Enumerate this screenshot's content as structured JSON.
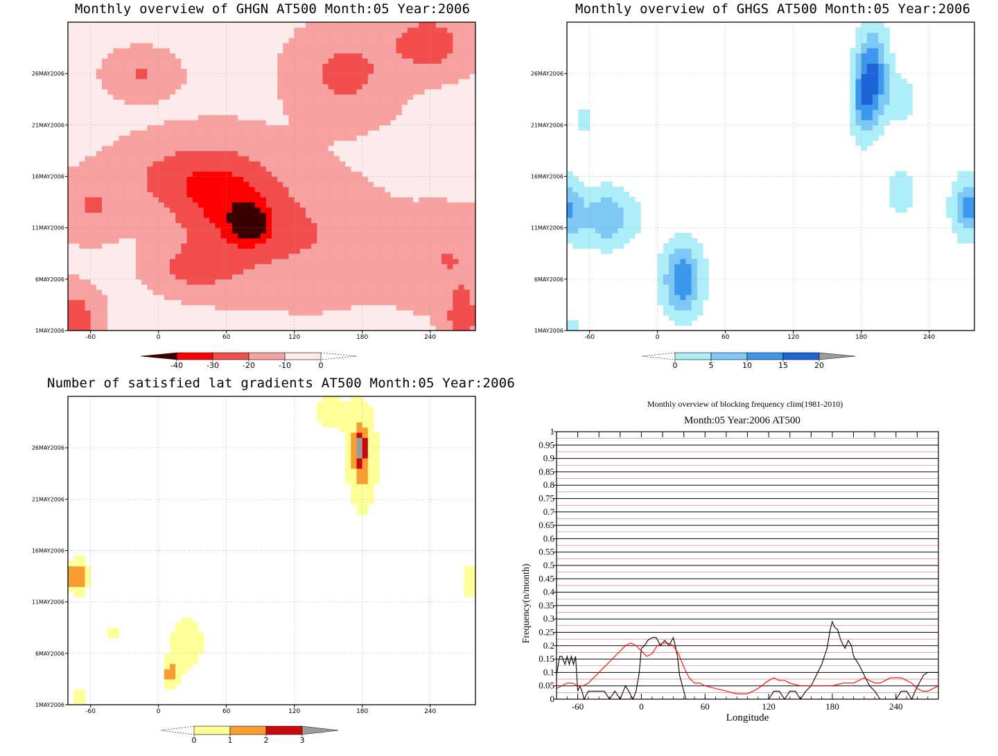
{
  "panels": {
    "ghgn": {
      "title": "Monthly overview of GHGN AT500 Month:05 Year:2006"
    },
    "ghgs": {
      "title": "Monthly overview of GHGS AT500 Month:05 Year:2006"
    },
    "latgrad": {
      "title": "Number of satisfied lat gradients AT500 Month:05 Year:2006"
    },
    "freq": {
      "title": "Monthly overview of blocking frequency clim(1981-2010)",
      "subtitle": "Month:05 Year:2006  AT500"
    }
  },
  "hovmoller_axes": {
    "x_ticks": [
      "-60",
      "0",
      "60",
      "120",
      "180",
      "240"
    ],
    "x_values": [
      -60,
      0,
      60,
      120,
      180,
      240
    ],
    "xlim": [
      -80,
      280
    ],
    "y_ticks": [
      "1MAY2006",
      "6MAY2006",
      "11MAY2006",
      "16MAY2006",
      "21MAY2006",
      "26MAY2006"
    ],
    "y_values": [
      1,
      6,
      11,
      16,
      21,
      26
    ],
    "ylim": [
      1,
      31
    ]
  },
  "colorbars": {
    "ghgn": {
      "labels": [
        "-40",
        "-30",
        "-20",
        "-10",
        "0"
      ],
      "colors": [
        "#3a0000",
        "#ff0000",
        "#f24e4e",
        "#f8a1a1",
        "#fdeaea"
      ]
    },
    "ghgs": {
      "labels": [
        "0",
        "5",
        "10",
        "15",
        "20"
      ],
      "colors": [
        "#aeeef8",
        "#7ec8f6",
        "#3c98ec",
        "#1c64d8",
        "#9b9b9b"
      ]
    },
    "latgrad": {
      "labels": [
        "0",
        "1",
        "2",
        "3"
      ],
      "colors": [
        "#ffff99",
        "#f99d30",
        "#c80a0a",
        "#9b9b9b"
      ]
    }
  },
  "chart_data": [
    {
      "type": "heatmap",
      "title": "Monthly overview of GHGN AT500 Month:05 Year:2006",
      "xlabel": "",
      "ylabel": "",
      "xlim": [
        -80,
        280
      ],
      "y_ticks": [
        "1MAY2006",
        "6MAY2006",
        "11MAY2006",
        "16MAY2006",
        "21MAY2006",
        "26MAY2006"
      ],
      "levels": [
        -40,
        -30,
        -20,
        -10,
        0
      ],
      "colors": [
        "#3a0000",
        "#ff0000",
        "#f24e4e",
        "#f8a1a1",
        "#fdeaea"
      ],
      "fields": [
        {
          "x": 80,
          "y": 11.5,
          "sx": 10,
          "sy": 1.2,
          "amp": -35
        },
        {
          "x": 65,
          "y": 12.5,
          "sx": 35,
          "sy": 4,
          "amp": -22
        },
        {
          "x": 20,
          "y": 16,
          "sx": 40,
          "sy": 2.5,
          "amp": -14
        },
        {
          "x": 165,
          "y": 26,
          "sx": 30,
          "sy": 3,
          "amp": -15
        },
        {
          "x": 240,
          "y": 29,
          "sx": 25,
          "sy": 2,
          "amp": -18
        },
        {
          "x": 255,
          "y": 8,
          "sx": 35,
          "sy": 3,
          "amp": -12
        },
        {
          "x": -75,
          "y": 2,
          "sx": 15,
          "sy": 2,
          "amp": -20
        },
        {
          "x": 268,
          "y": 2,
          "sx": 10,
          "sy": 2,
          "amp": -18
        },
        {
          "x": -15,
          "y": 26,
          "sx": 20,
          "sy": 1.5,
          "amp": -13
        },
        {
          "x": 30,
          "y": 7,
          "sx": 25,
          "sy": 1.5,
          "amp": -13
        },
        {
          "x": 140,
          "y": 10,
          "sx": 40,
          "sy": 4,
          "amp": -10
        },
        {
          "x": -60,
          "y": 13,
          "sx": 20,
          "sy": 2,
          "amp": -12
        }
      ],
      "base": -8
    },
    {
      "type": "heatmap",
      "title": "Monthly overview of GHGS AT500 Month:05 Year:2006",
      "xlabel": "",
      "ylabel": "",
      "xlim": [
        -80,
        280
      ],
      "levels": [
        0,
        5,
        10,
        15,
        20
      ],
      "colors": [
        "#aeeef8",
        "#7ec8f6",
        "#3c98ec",
        "#1c64d8",
        "#9b9b9b"
      ],
      "fields": [
        {
          "x": 190,
          "y": 26,
          "sx": 10,
          "sy": 3,
          "amp": 18
        },
        {
          "x": 182,
          "y": 23,
          "sx": 8,
          "sy": 2.5,
          "amp": 10
        },
        {
          "x": 22,
          "y": 6,
          "sx": 12,
          "sy": 2.5,
          "amp": 17
        },
        {
          "x": -45,
          "y": 12,
          "sx": 18,
          "sy": 2,
          "amp": 12
        },
        {
          "x": -78,
          "y": 13,
          "sx": 8,
          "sy": 2,
          "amp": 12
        },
        {
          "x": 275,
          "y": 13,
          "sx": 10,
          "sy": 2,
          "amp": 15
        },
        {
          "x": 215,
          "y": 14.5,
          "sx": 8,
          "sy": 1.5,
          "amp": 7
        },
        {
          "x": -65,
          "y": 21.5,
          "sx": 5,
          "sy": 1,
          "amp": 5
        },
        {
          "x": -75,
          "y": 1.5,
          "sx": 6,
          "sy": 1,
          "amp": 4
        },
        {
          "x": 215,
          "y": 23.5,
          "sx": 10,
          "sy": 1.5,
          "amp": 6
        }
      ],
      "base": -3
    },
    {
      "type": "heatmap",
      "title": "Number of satisfied lat gradients AT500 Month:05 Year:2006",
      "xlabel": "",
      "ylabel": "",
      "xlim": [
        -80,
        280
      ],
      "levels": [
        0,
        1,
        2,
        3
      ],
      "colors": [
        "#ffff99",
        "#f99d30",
        "#c80a0a",
        "#9b9b9b"
      ],
      "fields": [
        {
          "x": 180,
          "y": 25,
          "sx": 10,
          "sy": 4,
          "amp": 2.6
        },
        {
          "x": 178,
          "y": 26,
          "sx": 3,
          "sy": 1,
          "amp": 3.2
        },
        {
          "x": -72,
          "y": 13.5,
          "sx": 8,
          "sy": 1.3,
          "amp": 3.0
        },
        {
          "x": 275,
          "y": 13,
          "sx": 6,
          "sy": 1.5,
          "amp": 2.0
        },
        {
          "x": 25,
          "y": 7,
          "sx": 15,
          "sy": 3,
          "amp": 1.5
        },
        {
          "x": 10,
          "y": 4,
          "sx": 5,
          "sy": 1,
          "amp": 2.0
        },
        {
          "x": -70,
          "y": 1.5,
          "sx": 4,
          "sy": 1.2,
          "amp": 2.0
        },
        {
          "x": -40,
          "y": 8,
          "sx": 10,
          "sy": 1,
          "amp": 1.2
        },
        {
          "x": 240,
          "y": 27,
          "sx": 4,
          "sy": 1,
          "amp": 1.2
        },
        {
          "x": 130,
          "y": 23,
          "sx": 3,
          "sy": 1,
          "amp": 1.2
        },
        {
          "x": 150,
          "y": 29.5,
          "sx": 15,
          "sy": 2,
          "amp": 1.3
        },
        {
          "x": 180,
          "y": 12,
          "sx": 3,
          "sy": 1,
          "amp": 1.2
        }
      ],
      "base": -1
    },
    {
      "type": "line",
      "title": "Monthly overview of blocking frequency clim(1981-2010)",
      "subtitle": "Month:05 Year:2006  AT500",
      "xlabel": "Longitude",
      "ylabel": "Frequency(n/month)",
      "xlim": [
        -80,
        280
      ],
      "ylim": [
        0,
        1
      ],
      "x_ticks": [
        "-60",
        "0",
        "60",
        "120",
        "180",
        "240"
      ],
      "y_ticks": [
        "0",
        "0.05",
        "0.1",
        "0.15",
        "0.2",
        "0.25",
        "0.3",
        "0.35",
        "0.4",
        "0.45",
        "0.5",
        "0.55",
        "0.6",
        "0.65",
        "0.7",
        "0.75",
        "0.8",
        "0.85",
        "0.9",
        "0.95",
        "1"
      ],
      "series": [
        {
          "color": "#000000",
          "x": [
            -80,
            -77,
            -75,
            -72,
            -70,
            -68,
            -66,
            -64,
            -62,
            -60,
            -58,
            -56,
            -54,
            -50,
            -45,
            -40,
            -35,
            -30,
            -25,
            -20,
            -17,
            -15,
            -12,
            -8,
            -5,
            -2,
            0,
            3,
            6,
            10,
            14,
            18,
            22,
            26,
            30,
            32,
            34,
            36,
            38,
            40,
            42,
            44,
            46,
            50,
            60,
            70,
            80,
            90,
            100,
            110,
            120,
            125,
            130,
            135,
            140,
            145,
            150,
            155,
            160,
            165,
            170,
            175,
            178,
            180,
            182,
            185,
            188,
            192,
            195,
            198,
            200,
            205,
            210,
            215,
            220,
            225,
            230,
            240,
            245,
            250,
            255,
            258,
            262,
            266,
            270,
            275,
            280
          ],
          "y": [
            0.09,
            0.16,
            0.16,
            0.13,
            0.16,
            0.13,
            0.16,
            0.13,
            0.16,
            0.03,
            0.05,
            0.03,
            0.0,
            0.03,
            0.03,
            0.03,
            0.03,
            0.0,
            0.03,
            0.0,
            0.03,
            0.05,
            0.03,
            0.0,
            0.03,
            0.1,
            0.19,
            0.2,
            0.22,
            0.23,
            0.23,
            0.2,
            0.22,
            0.2,
            0.23,
            0.2,
            0.16,
            0.09,
            0.06,
            0.03,
            0.0,
            0.0,
            0.0,
            0.0,
            0.0,
            0.0,
            0.0,
            0.0,
            0.0,
            0.0,
            0.0,
            0.03,
            0.03,
            0.0,
            0.03,
            0.03,
            0.0,
            0.03,
            0.05,
            0.09,
            0.13,
            0.19,
            0.26,
            0.29,
            0.27,
            0.26,
            0.22,
            0.19,
            0.22,
            0.2,
            0.16,
            0.13,
            0.09,
            0.05,
            0.03,
            0.0,
            0.0,
            0.0,
            0.03,
            0.03,
            0.0,
            0.03,
            0.06,
            0.09,
            0.1,
            0.1,
            0.1
          ]
        },
        {
          "color": "#ff0000",
          "x": [
            -80,
            -75,
            -70,
            -65,
            -60,
            -55,
            -50,
            -45,
            -40,
            -35,
            -30,
            -25,
            -20,
            -15,
            -10,
            -5,
            0,
            5,
            10,
            15,
            20,
            25,
            30,
            35,
            40,
            45,
            50,
            55,
            60,
            70,
            80,
            90,
            100,
            110,
            120,
            125,
            130,
            135,
            140,
            150,
            160,
            170,
            180,
            190,
            200,
            205,
            210,
            215,
            220,
            225,
            230,
            235,
            240,
            245,
            250,
            255,
            260,
            265,
            270,
            275,
            280
          ],
          "y": [
            0.04,
            0.05,
            0.06,
            0.06,
            0.05,
            0.05,
            0.06,
            0.08,
            0.1,
            0.12,
            0.14,
            0.16,
            0.18,
            0.2,
            0.21,
            0.2,
            0.18,
            0.16,
            0.17,
            0.2,
            0.21,
            0.21,
            0.2,
            0.17,
            0.12,
            0.08,
            0.06,
            0.06,
            0.05,
            0.04,
            0.03,
            0.02,
            0.02,
            0.04,
            0.07,
            0.08,
            0.07,
            0.07,
            0.06,
            0.05,
            0.05,
            0.05,
            0.05,
            0.06,
            0.06,
            0.07,
            0.08,
            0.07,
            0.06,
            0.06,
            0.07,
            0.08,
            0.08,
            0.08,
            0.07,
            0.06,
            0.04,
            0.03,
            0.03,
            0.04,
            0.05
          ]
        }
      ]
    }
  ]
}
